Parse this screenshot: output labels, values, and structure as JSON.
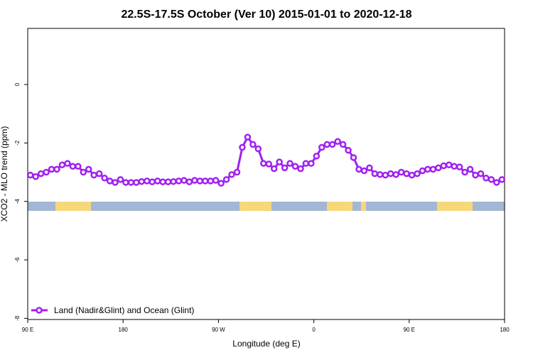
{
  "chart_data": {
    "type": "line",
    "title": "22.5S-17.5S October (Ver 10)   2015-01-01 to 2020-12-18",
    "x_label": "Longitude (deg E)",
    "y_label": "XCO2 - MLO trend (ppm)",
    "xlim": [
      90,
      540
    ],
    "ylim": [
      -8.04,
      1.92
    ],
    "xticks": [
      {
        "value": 90,
        "label": "90 E"
      },
      {
        "value": 180,
        "label": "180"
      },
      {
        "value": 270,
        "label": "90 W"
      },
      {
        "value": 360,
        "label": "0"
      },
      {
        "value": 450,
        "label": "90 E"
      },
      {
        "value": 540,
        "label": "180"
      }
    ],
    "yticks": [
      0,
      -2,
      -4,
      -6,
      -8
    ],
    "legend": "bottom-left",
    "series": [
      {
        "name": "Land (Nadir&Glint) and Ocean (Glint)",
        "color": "#a020f0",
        "x": [
          92.5,
          97.5,
          102.5,
          107.5,
          112.5,
          117.5,
          122.5,
          127.5,
          132.5,
          137.5,
          142.5,
          147.5,
          152.5,
          157.5,
          162.5,
          167.5,
          172.5,
          177.5,
          182.5,
          187.5,
          192.5,
          197.5,
          202.5,
          207.5,
          212.5,
          217.5,
          222.5,
          227.5,
          232.5,
          237.5,
          242.5,
          247.5,
          252.5,
          257.5,
          262.5,
          267.5,
          272.5,
          277.5,
          282.5,
          287.5,
          292.5,
          297.5,
          302.5,
          307.5,
          312.5,
          317.5,
          322.5,
          327.5,
          332.5,
          337.5,
          342.5,
          347.5,
          352.5,
          357.5,
          362.5,
          367.5,
          372.5,
          377.5,
          382.5,
          387.5,
          392.5,
          397.5,
          402.5,
          407.5,
          412.5,
          417.5,
          422.5,
          427.5,
          432.5,
          437.5,
          442.5,
          447.5,
          452.5,
          457.5,
          462.5,
          467.5,
          472.5,
          477.5,
          482.5,
          487.5,
          492.5,
          497.5,
          502.5,
          507.5,
          512.5,
          517.5,
          522.5,
          527.5,
          532.5,
          537.5
        ],
        "values": [
          -3.1,
          -3.15,
          -3.05,
          -3.0,
          -2.9,
          -2.9,
          -2.75,
          -2.7,
          -2.8,
          -2.8,
          -3.0,
          -2.9,
          -3.1,
          -3.05,
          -3.2,
          -3.3,
          -3.35,
          -3.25,
          -3.35,
          -3.35,
          -3.35,
          -3.32,
          -3.3,
          -3.33,
          -3.3,
          -3.33,
          -3.33,
          -3.32,
          -3.3,
          -3.28,
          -3.33,
          -3.28,
          -3.3,
          -3.3,
          -3.3,
          -3.28,
          -3.38,
          -3.25,
          -3.08,
          -3.0,
          -2.15,
          -1.8,
          -2.05,
          -2.2,
          -2.7,
          -2.72,
          -2.88,
          -2.65,
          -2.85,
          -2.7,
          -2.8,
          -2.88,
          -2.7,
          -2.7,
          -2.45,
          -2.15,
          -2.05,
          -2.05,
          -1.95,
          -2.05,
          -2.25,
          -2.5,
          -2.9,
          -2.95,
          -2.85,
          -3.05,
          -3.08,
          -3.1,
          -3.05,
          -3.08,
          -3.0,
          -3.05,
          -3.1,
          -3.05,
          -2.95,
          -2.9,
          -2.9,
          -2.85,
          -2.78,
          -2.75,
          -2.8,
          -2.82,
          -3.0,
          -2.9,
          -3.1,
          -3.05,
          -3.2,
          -3.25,
          -3.35,
          -3.25
        ]
      }
    ]
  }
}
